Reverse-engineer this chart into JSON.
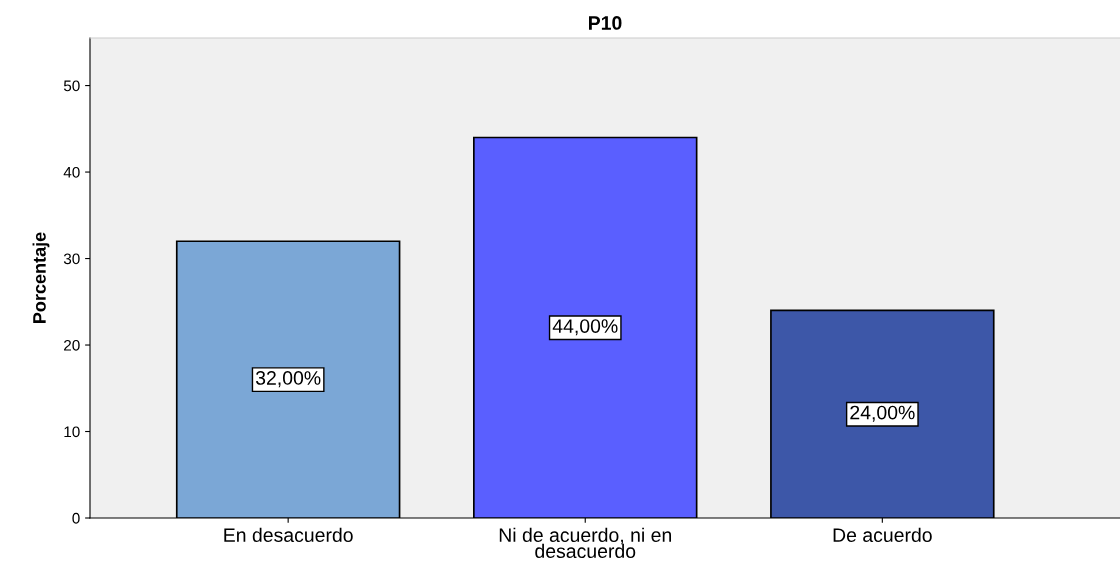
{
  "chart_data": {
    "type": "bar",
    "title": "P10",
    "ylabel": "Porcentaje",
    "categories": [
      "En desacuerdo",
      "Ni de acuerdo, ni en\ndesacuerdo",
      "De acuerdo"
    ],
    "values": [
      32,
      44,
      24
    ],
    "colors": [
      "#7ba7d6",
      "#5a5fff",
      "#3d57a8"
    ],
    "value_labels": [
      "32,00%",
      "44,00%",
      "24,00%"
    ],
    "ylim": [
      0,
      55.5
    ],
    "yticks": [
      0,
      10,
      20,
      30,
      40,
      50
    ],
    "grid": false
  }
}
